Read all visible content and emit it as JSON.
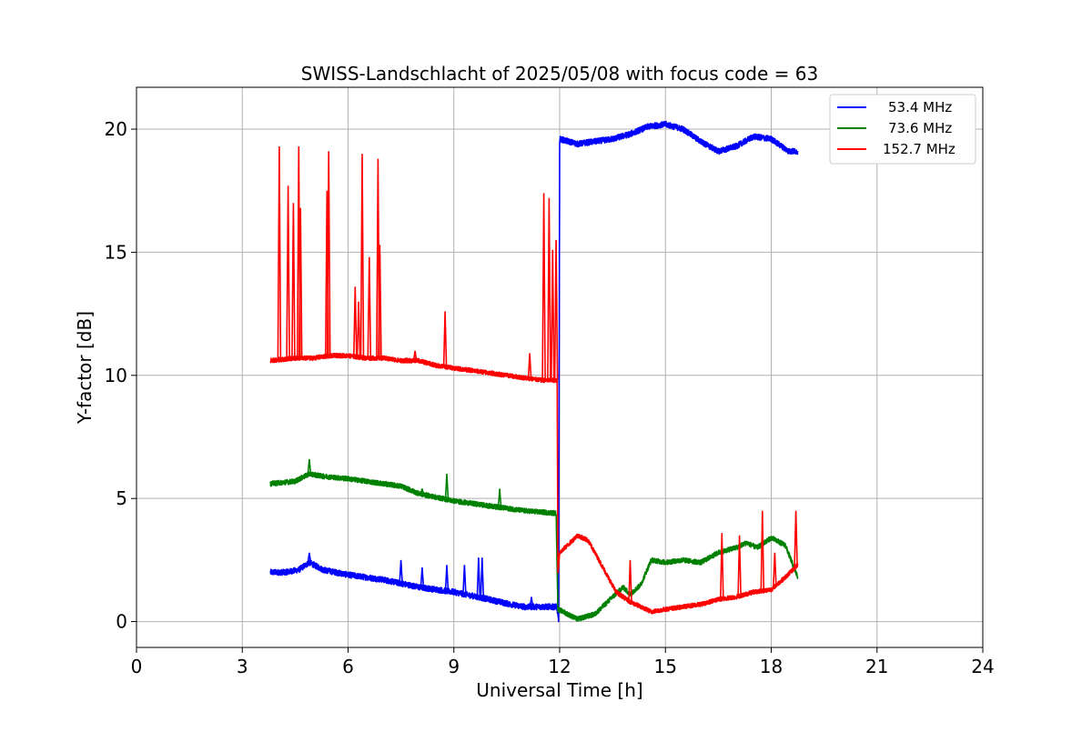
{
  "chart_data": {
    "type": "line",
    "title": "SWISS-Landschlacht of 2025/05/08 with focus code = 63",
    "xlabel": "Universal Time [h]",
    "ylabel": "Y-factor [dB]",
    "xlim": [
      0,
      24
    ],
    "ylim": [
      -1.05,
      21.7
    ],
    "xticks": [
      0,
      3,
      6,
      9,
      12,
      15,
      18,
      21,
      24
    ],
    "xtick_labels": [
      "0",
      "3",
      "6",
      "9",
      "12",
      "15",
      "18",
      "21",
      "24"
    ],
    "yticks": [
      0,
      5,
      10,
      15,
      20
    ],
    "ytick_labels": [
      "0",
      "5",
      "10",
      "15",
      "20"
    ],
    "grid": true,
    "legend_position": "top-right",
    "series": [
      {
        "name": "53.4 MHz",
        "color": "#0000ff",
        "x": [
          3.8,
          4.2,
          4.6,
          4.9,
          5.3,
          6.0,
          7.0,
          8.0,
          9.0,
          10.0,
          10.6,
          11.0,
          11.5,
          11.92,
          11.97,
          12.0,
          12.5,
          13.0,
          13.5,
          14.0,
          14.5,
          15.0,
          15.5,
          16.0,
          16.5,
          17.0,
          17.5,
          18.0,
          18.5,
          18.75
        ],
        "y": [
          2.0,
          2.0,
          2.1,
          2.4,
          2.1,
          1.9,
          1.7,
          1.4,
          1.2,
          0.9,
          0.7,
          0.6,
          0.6,
          0.6,
          0.0,
          19.6,
          19.4,
          19.5,
          19.6,
          19.8,
          20.1,
          20.2,
          20.0,
          19.5,
          19.1,
          19.3,
          19.7,
          19.6,
          19.1,
          19.1
        ],
        "noise": 0.12,
        "spikes": [
          [
            4.9,
            2.8
          ],
          [
            7.5,
            2.5
          ],
          [
            8.1,
            2.2
          ],
          [
            8.8,
            2.3
          ],
          [
            9.3,
            2.3
          ],
          [
            9.7,
            2.6
          ],
          [
            9.8,
            2.6
          ],
          [
            11.2,
            1.0
          ]
        ]
      },
      {
        "name": "73.6 MHz",
        "color": "#008000",
        "x": [
          3.8,
          4.5,
          4.9,
          5.3,
          6.0,
          7.0,
          7.5,
          8.0,
          9.0,
          10.0,
          11.0,
          11.9,
          11.95,
          12.1,
          12.5,
          13.0,
          13.5,
          13.8,
          14.0,
          14.3,
          14.6,
          15.0,
          15.5,
          16.0,
          16.5,
          17.0,
          17.3,
          17.6,
          18.0,
          18.4,
          18.75
        ],
        "y": [
          5.6,
          5.7,
          6.0,
          5.9,
          5.8,
          5.6,
          5.5,
          5.2,
          4.9,
          4.7,
          4.5,
          4.4,
          0.5,
          0.4,
          0.1,
          0.3,
          1.0,
          1.4,
          1.1,
          1.5,
          2.5,
          2.4,
          2.5,
          2.4,
          2.8,
          3.0,
          3.2,
          3.0,
          3.4,
          3.1,
          1.8
        ],
        "noise": 0.1,
        "spikes": [
          [
            4.9,
            6.6
          ],
          [
            8.8,
            6.0
          ],
          [
            8.1,
            5.4
          ],
          [
            10.3,
            5.4
          ]
        ]
      },
      {
        "name": "152.7 MHz",
        "color": "#ff0000",
        "x": [
          3.8,
          4.5,
          5.0,
          5.5,
          6.0,
          6.5,
          7.0,
          7.5,
          8.0,
          8.5,
          9.0,
          9.5,
          10.0,
          10.5,
          11.0,
          11.5,
          11.93,
          11.95,
          12.0,
          12.3,
          12.5,
          12.8,
          13.0,
          13.3,
          13.6,
          14.0,
          14.3,
          14.6,
          15.0,
          15.5,
          16.0,
          16.5,
          17.0,
          17.5,
          18.0,
          18.4,
          18.75
        ],
        "y": [
          10.6,
          10.7,
          10.7,
          10.8,
          10.8,
          10.7,
          10.7,
          10.6,
          10.6,
          10.4,
          10.3,
          10.2,
          10.1,
          10.0,
          9.9,
          9.8,
          9.8,
          2.0,
          2.8,
          3.2,
          3.5,
          3.3,
          2.8,
          2.0,
          1.2,
          0.8,
          0.6,
          0.4,
          0.5,
          0.6,
          0.7,
          0.9,
          1.0,
          1.2,
          1.3,
          1.8,
          2.3
        ],
        "noise": 0.09,
        "spikes": [
          [
            4.05,
            19.3
          ],
          [
            4.3,
            17.7
          ],
          [
            4.45,
            17.0
          ],
          [
            4.6,
            19.3
          ],
          [
            4.65,
            16.8
          ],
          [
            5.4,
            17.5
          ],
          [
            5.45,
            19.1
          ],
          [
            6.2,
            13.6
          ],
          [
            6.3,
            13.0
          ],
          [
            6.4,
            19.0
          ],
          [
            6.6,
            14.8
          ],
          [
            6.85,
            18.8
          ],
          [
            6.9,
            15.3
          ],
          [
            7.9,
            11.0
          ],
          [
            8.75,
            12.6
          ],
          [
            11.15,
            10.9
          ],
          [
            11.55,
            17.4
          ],
          [
            11.7,
            17.2
          ],
          [
            11.8,
            15.1
          ],
          [
            11.9,
            15.5
          ],
          [
            14.0,
            2.5
          ],
          [
            16.6,
            3.6
          ],
          [
            17.1,
            3.5
          ],
          [
            17.75,
            4.5
          ],
          [
            18.1,
            2.8
          ],
          [
            18.7,
            4.5
          ]
        ]
      }
    ]
  }
}
